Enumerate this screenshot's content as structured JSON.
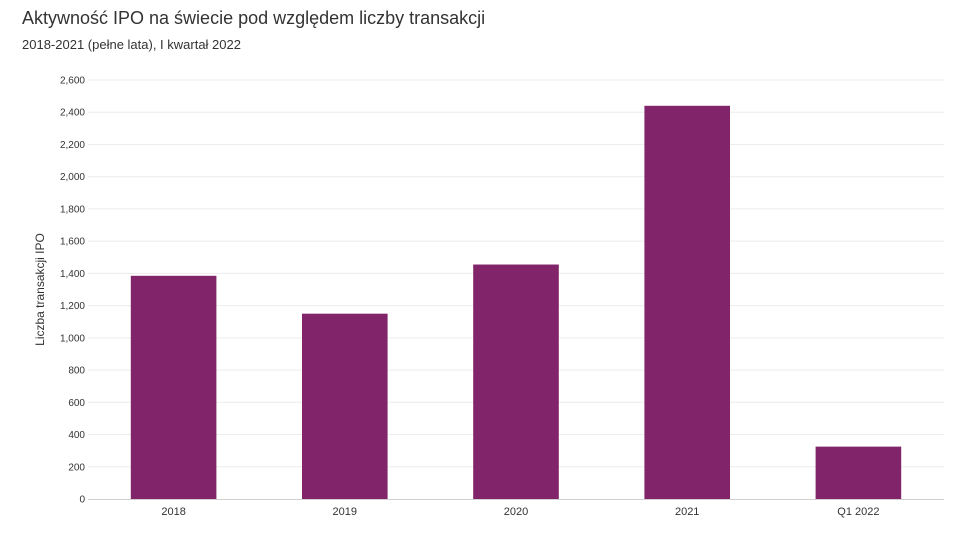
{
  "header": {
    "title": "Aktywność IPO na świecie pod względem liczby transakcji",
    "subtitle": "2018-2021 (pełne lata), I kwartał 2022"
  },
  "chart_data": {
    "type": "bar",
    "title": "Aktywność IPO na świecie pod względem liczby transakcji",
    "subtitle": "2018-2021 (pełne lata), I kwartał 2022",
    "categories": [
      "2018",
      "2019",
      "2020",
      "2021",
      "Q1 2022"
    ],
    "values": [
      1385,
      1150,
      1455,
      2440,
      325
    ],
    "xlabel": "",
    "ylabel": "Liczba transakcji IPO",
    "ylim": [
      0,
      2600
    ],
    "yticks": [
      0,
      200,
      400,
      600,
      800,
      1000,
      1200,
      1400,
      1600,
      1800,
      2000,
      2200,
      2400,
      2600
    ],
    "ytick_labels": [
      "0",
      "200",
      "400",
      "600",
      "800",
      "1,000",
      "1,200",
      "1,400",
      "1,600",
      "1,800",
      "2,000",
      "2,200",
      "2,400",
      "2,600"
    ],
    "grid": true,
    "legend": "none",
    "bar_color": "#82246a",
    "grid_color": "#ececec",
    "axis_color": "#d0d0d0"
  }
}
